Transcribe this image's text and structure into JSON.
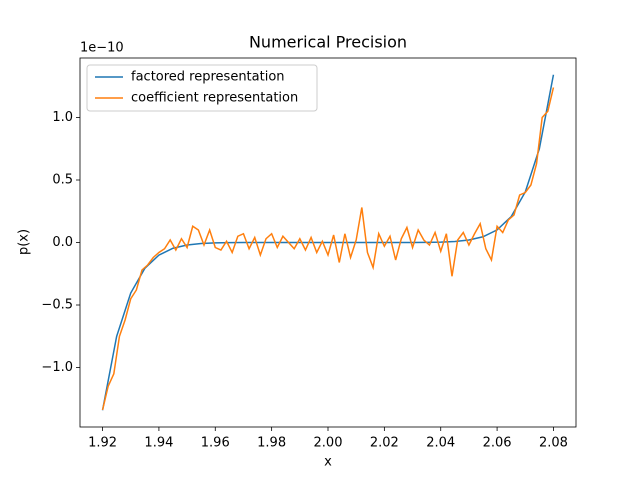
{
  "chart_data": {
    "type": "line",
    "title": "Numerical Precision",
    "xlabel": "x",
    "ylabel": "p(x)",
    "y_offset_text": "1e−10",
    "xlim": [
      1.912,
      2.088
    ],
    "ylim": [
      -1.476,
      1.476
    ],
    "xticks": [
      1.92,
      1.94,
      1.96,
      1.98,
      {
        "value": 2,
        "label": "2.00"
      },
      2.02,
      2.04,
      2.06,
      2.08
    ],
    "yticks": [
      {
        "value": -1,
        "label": "−1.0"
      },
      {
        "value": -0.5,
        "label": "−0.5"
      },
      {
        "value": 0,
        "label": "0.0"
      },
      {
        "value": 0.5,
        "label": "0.5"
      },
      {
        "value": 1,
        "label": "1.0"
      }
    ],
    "legend": "upper left",
    "series": [
      {
        "name": "factored representation",
        "color": "#1f77b4",
        "x": [
          1.92,
          1.925,
          1.93,
          1.935,
          1.94,
          1.945,
          1.95,
          1.955,
          1.96,
          1.965,
          1.97,
          1.975,
          1.98,
          1.985,
          1.99,
          1.995,
          2.0,
          2.005,
          2.01,
          2.015,
          2.02,
          2.025,
          2.03,
          2.035,
          2.04,
          2.045,
          2.05,
          2.055,
          2.06,
          2.065,
          2.07,
          2.075,
          2.08
        ],
        "values": [
          -1.342,
          -0.751,
          -0.404,
          -0.207,
          -0.101,
          -0.046,
          -0.02,
          -0.008,
          -0.003,
          -0.001,
          0,
          0,
          0,
          0,
          0,
          0,
          0,
          0,
          0,
          0,
          0,
          0,
          0,
          0.001,
          0.003,
          0.008,
          0.02,
          0.046,
          0.101,
          0.207,
          0.404,
          0.751,
          1.342
        ]
      },
      {
        "name": "coefficient representation",
        "color": "#ff7f0e",
        "x": [
          1.92,
          1.922,
          1.924,
          1.926,
          1.928,
          1.93,
          1.932,
          1.934,
          1.936,
          1.938,
          1.94,
          1.942,
          1.944,
          1.946,
          1.948,
          1.95,
          1.952,
          1.954,
          1.956,
          1.958,
          1.96,
          1.962,
          1.964,
          1.966,
          1.968,
          1.97,
          1.972,
          1.974,
          1.976,
          1.978,
          1.98,
          1.982,
          1.984,
          1.986,
          1.988,
          1.99,
          1.992,
          1.994,
          1.996,
          1.998,
          2.0,
          2.002,
          2.004,
          2.006,
          2.008,
          2.01,
          2.012,
          2.014,
          2.016,
          2.018,
          2.02,
          2.022,
          2.024,
          2.026,
          2.028,
          2.03,
          2.032,
          2.034,
          2.036,
          2.038,
          2.04,
          2.042,
          2.044,
          2.046,
          2.048,
          2.05,
          2.052,
          2.054,
          2.056,
          2.058,
          2.06,
          2.062,
          2.064,
          2.066,
          2.068,
          2.07,
          2.072,
          2.074,
          2.076,
          2.078,
          2.08
        ],
        "values": [
          -1.34,
          -1.15,
          -1.05,
          -0.75,
          -0.62,
          -0.45,
          -0.38,
          -0.22,
          -0.18,
          -0.12,
          -0.08,
          -0.05,
          0.02,
          -0.06,
          0.03,
          -0.04,
          0.13,
          0.1,
          -0.02,
          0.1,
          -0.04,
          -0.06,
          0.01,
          -0.08,
          0.05,
          0.07,
          -0.05,
          0.04,
          -0.1,
          0.03,
          0.07,
          -0.04,
          0.05,
          0,
          -0.05,
          0.03,
          -0.06,
          0.04,
          -0.08,
          0.01,
          -0.1,
          0.06,
          -0.16,
          0.07,
          -0.12,
          0.02,
          0.28,
          -0.08,
          -0.2,
          0.07,
          -0.03,
          0.05,
          -0.14,
          0.03,
          0.12,
          -0.04,
          0.1,
          0.02,
          -0.02,
          0.08,
          -0.07,
          0.07,
          -0.27,
          0.02,
          0.08,
          -0.02,
          0.07,
          0.15,
          -0.05,
          -0.14,
          0.13,
          0.08,
          0.18,
          0.22,
          0.38,
          0.4,
          0.46,
          0.63,
          1.0,
          1.05,
          1.24
        ]
      }
    ]
  }
}
